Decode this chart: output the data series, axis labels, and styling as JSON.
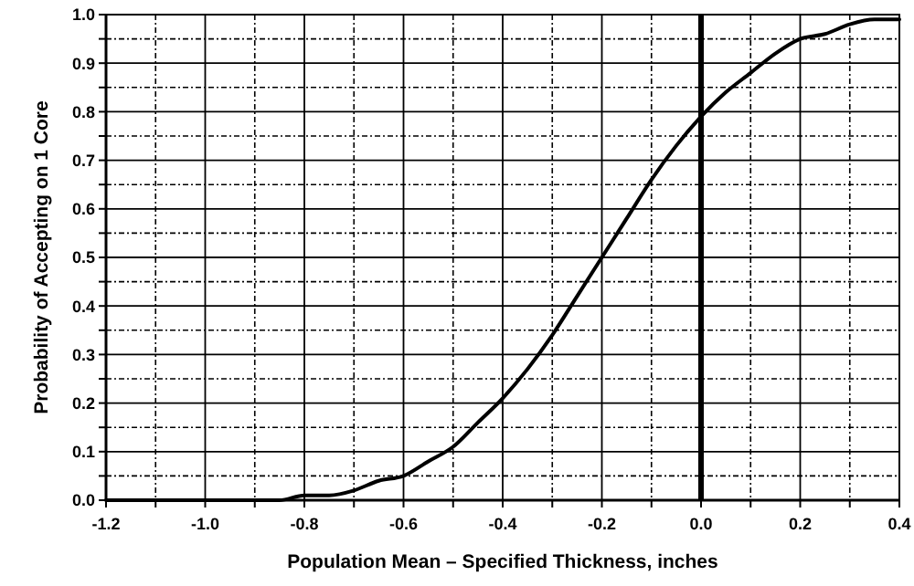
{
  "chart_data": {
    "type": "line",
    "xlabel": "Population Mean – Specified Thickness, inches",
    "ylabel": "Probability of Accepting on 1 Core",
    "x": [
      -1.2,
      -1.1,
      -1.0,
      -0.9,
      -0.85,
      -0.8,
      -0.75,
      -0.7,
      -0.65,
      -0.6,
      -0.55,
      -0.5,
      -0.45,
      -0.4,
      -0.35,
      -0.3,
      -0.25,
      -0.2,
      -0.15,
      -0.1,
      -0.05,
      0,
      0.05,
      0.1,
      0.15,
      0.2,
      0.25,
      0.3,
      0.35,
      0.4
    ],
    "series": [
      {
        "color": "#000000",
        "values": [
          0,
          0,
          0,
          0.0,
          0.0,
          0.01,
          0.01,
          0.02,
          0.04,
          0.05,
          0.08,
          0.11,
          0.16,
          0.21,
          0.27,
          0.34,
          0.42,
          0.5,
          0.58,
          0.66,
          0.73,
          0.79,
          0.84,
          0.88,
          0.92,
          0.95,
          0.96,
          0.98,
          0.99,
          0.99
        ]
      }
    ],
    "xlim": [
      -1.2,
      0.4
    ],
    "xticks": [
      -1.2,
      {
        "value": -1.0,
        "label": "-1.0"
      },
      -0.8,
      -0.6,
      -0.4,
      -0.2,
      {
        "value": 0,
        "label": "0.0"
      },
      0.2,
      0.4
    ],
    "ylim": [
      0,
      1
    ],
    "yticks": [
      {
        "value": 0,
        "label": "0.0"
      },
      0.1,
      0.2,
      0.3,
      0.4,
      0.5,
      0.6,
      0.7,
      0.8,
      0.9,
      {
        "value": 1,
        "label": "1.0"
      }
    ],
    "ref_lines": [
      {
        "axis": "x",
        "value": 0,
        "color": "#000000"
      }
    ],
    "grid": true,
    "marker": "none",
    "line_style": "solid"
  }
}
